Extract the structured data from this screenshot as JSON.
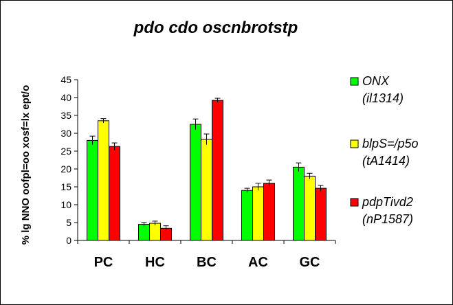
{
  "chart_data": {
    "type": "bar",
    "title": "pdo cdo oscnbrotstp",
    "xlabel": "",
    "ylabel": "% lg NNO oofpl=oo xosf=lx ept/o",
    "categories": [
      "PC",
      "HC",
      "BC",
      "AC",
      "GC"
    ],
    "ylim": [
      0,
      45
    ],
    "yticks": [
      0,
      5,
      10,
      15,
      20,
      25,
      30,
      35,
      40,
      45
    ],
    "grid": false,
    "legend_position": "right",
    "series": [
      {
        "name": "ONX",
        "name_line2": "(il1314)",
        "color": "#00ff00",
        "values": [
          28.0,
          4.5,
          32.5,
          14.0,
          20.5
        ],
        "errors": [
          1.2,
          0.5,
          1.5,
          0.6,
          1.2
        ]
      },
      {
        "name": "blpS=/p5o",
        "name_line2": "(tA1414)",
        "color": "#ffff00",
        "values": [
          33.5,
          4.8,
          28.3,
          15.0,
          18.0
        ],
        "errors": [
          0.6,
          0.6,
          1.5,
          1.0,
          0.8
        ]
      },
      {
        "name": "pdpTivd2",
        "name_line2": "(nP1587)",
        "color": "#ff0000",
        "values": [
          26.3,
          3.4,
          39.2,
          16.0,
          14.6
        ],
        "errors": [
          1.0,
          0.7,
          0.6,
          0.9,
          0.8
        ]
      }
    ]
  }
}
